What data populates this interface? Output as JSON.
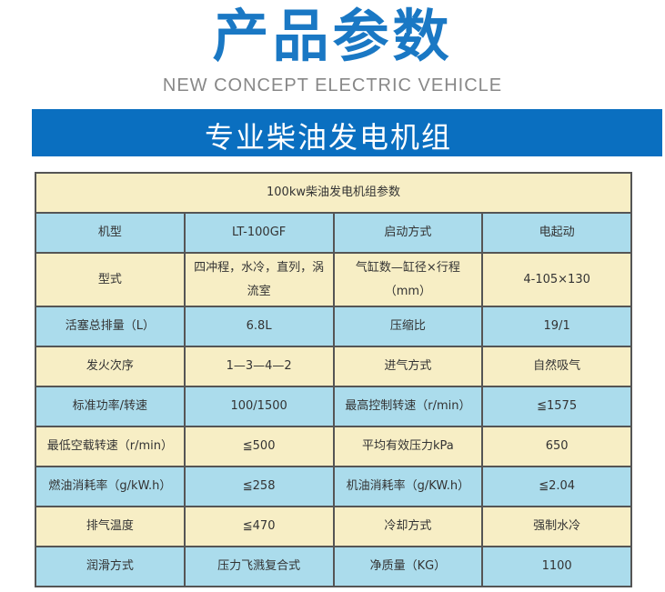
{
  "header": {
    "title": "产品参数",
    "subtitle": "NEW CONCEPT ELECTRIC VEHICLE",
    "banner": "专业柴油发电机组"
  },
  "table": {
    "title": "100kw柴油发电机组参数",
    "rows": [
      [
        "机型",
        "LT-100GF",
        "启动方式",
        "电起动"
      ],
      [
        "型式",
        "四冲程，水冷，直列，涡流室",
        "气缸数—缸径×行程（mm）",
        "4-105×130"
      ],
      [
        "活塞总排量（L）",
        "6.8L",
        "压缩比",
        "19/1"
      ],
      [
        "发火次序",
        "1—3—4—2",
        "进气方式",
        "自然吸气"
      ],
      [
        "标准功率/转速",
        "100/1500",
        "最高控制转速（r/min）",
        "≦1575"
      ],
      [
        "最低空载转速（r/min）",
        "≦500",
        "平均有效压力kPa",
        "650"
      ],
      [
        "燃油消耗率（g/kW.h）",
        "≦258",
        "机油消耗率（g/KW.h）",
        "≦2.04"
      ],
      [
        "排气温度",
        "≦470",
        "冷却方式",
        "强制水冷"
      ],
      [
        "润滑方式",
        "压力飞溅复合式",
        "净质量（KG）",
        "1100"
      ]
    ]
  },
  "colors": {
    "accent": "#0a6fc0",
    "row_yellow": "#f7eec5",
    "row_blue": "#abdcec"
  }
}
